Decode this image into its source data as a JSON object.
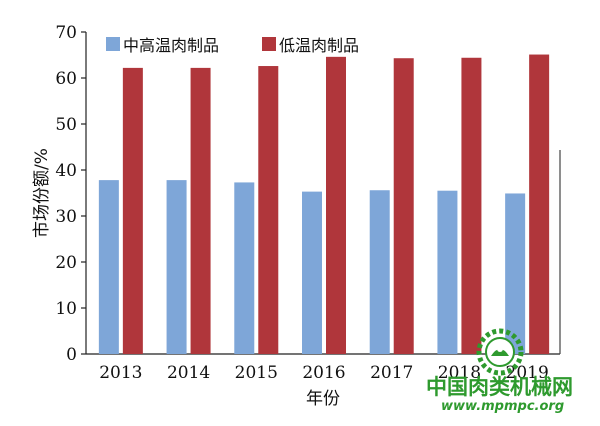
{
  "chart_data": {
    "type": "bar",
    "categories": [
      "2013",
      "2014",
      "2015",
      "2016",
      "2017",
      "2018",
      "2019"
    ],
    "series": [
      {
        "name": "中高温肉制品",
        "values": [
          37.8,
          37.8,
          37.3,
          35.3,
          35.6,
          35.5,
          34.9
        ],
        "color": "#7ea6d8"
      },
      {
        "name": "低温肉制品",
        "values": [
          62.2,
          62.2,
          62.6,
          64.6,
          64.3,
          64.4,
          65.1
        ],
        "color": "#b0363b"
      }
    ],
    "xlabel": "年份",
    "ylabel": "市场份额/%",
    "ylim": [
      0,
      70
    ],
    "yticks": [
      0,
      10,
      20,
      30,
      40,
      50,
      60,
      70
    ],
    "legend_position": "top-left",
    "grid": false
  },
  "watermark": {
    "site_name": "中国肉类机械网",
    "url": "www.mpmpc.org",
    "color": "#2e9a2e",
    "icon": "gear-logo-icon"
  }
}
